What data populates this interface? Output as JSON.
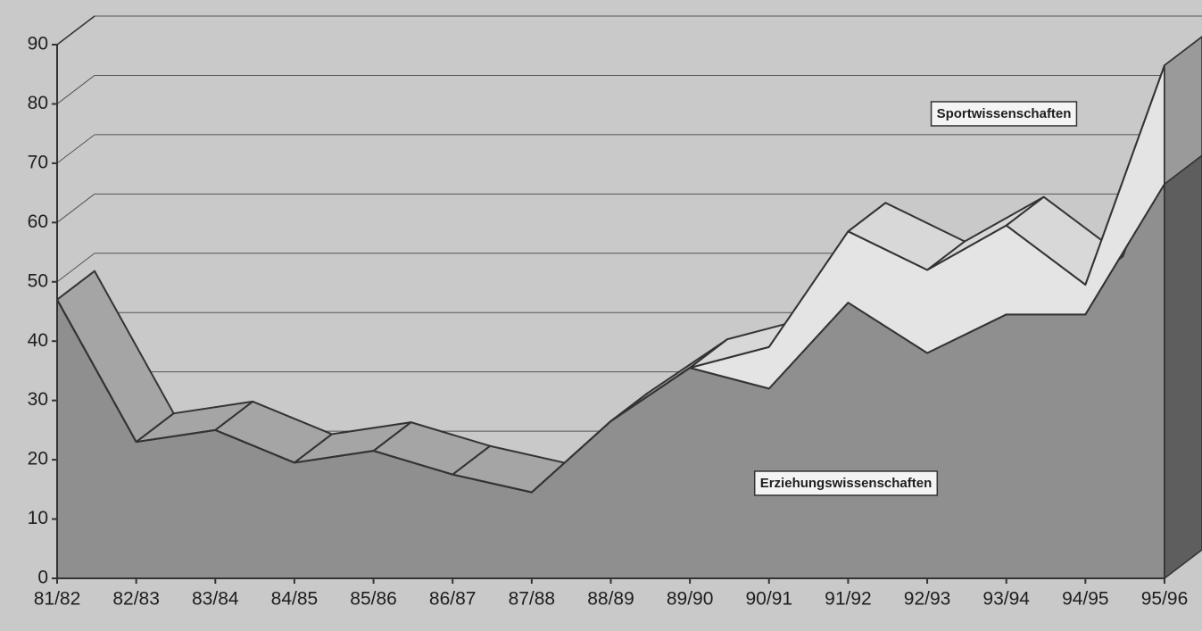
{
  "chart_data": {
    "type": "area",
    "stacked": true,
    "categories": [
      "81/82",
      "82/83",
      "83/84",
      "84/85",
      "85/86",
      "86/87",
      "87/88",
      "88/89",
      "89/90",
      "90/91",
      "91/92",
      "92/93",
      "93/94",
      "94/95",
      "95/96"
    ],
    "series": [
      {
        "name": "Erziehungswissenschaften",
        "color": "#8f8f8f",
        "values": [
          47,
          23,
          25,
          19.5,
          21.5,
          17.5,
          14.5,
          26.5,
          35.5,
          32,
          46.5,
          38,
          44.5,
          44.5,
          66.5
        ]
      },
      {
        "name": "Sportwissenschaften",
        "color": "#e4e4e4",
        "values": [
          0,
          0,
          0,
          0,
          0,
          0,
          0,
          0,
          0,
          7,
          12,
          14,
          15,
          5,
          20
        ]
      }
    ],
    "ylim": [
      0,
      90
    ],
    "yticks": [
      0,
      10,
      20,
      30,
      40,
      50,
      60,
      70,
      80,
      90
    ],
    "grid": true
  }
}
